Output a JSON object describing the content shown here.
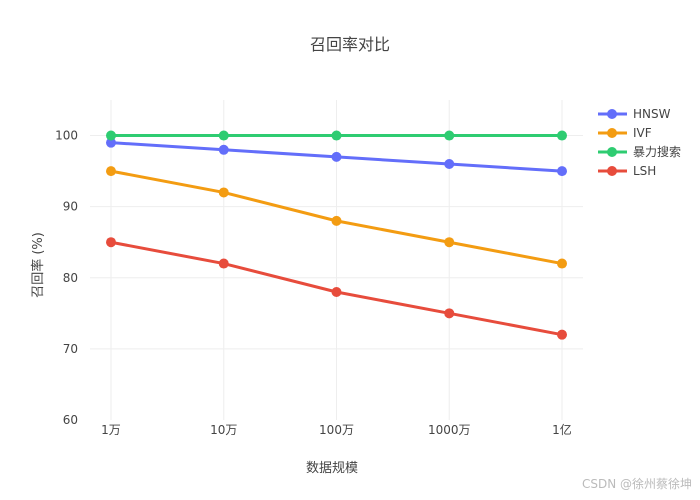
{
  "chart_data": {
    "type": "line",
    "title": "召回率对比",
    "xlabel": "数据规模",
    "ylabel": "召回率 (%)",
    "categories": [
      "1万",
      "10万",
      "100万",
      "1000万",
      "1亿"
    ],
    "yticks": [
      60,
      70,
      80,
      90,
      100
    ],
    "ylim": [
      60,
      105
    ],
    "grid": true,
    "legend": "top-right",
    "series": [
      {
        "name": "HNSW",
        "color": "#636EFA",
        "values": [
          99,
          98,
          97,
          96,
          95
        ]
      },
      {
        "name": "IVF",
        "color": "#F39C12",
        "values": [
          95,
          92,
          88,
          85,
          82
        ]
      },
      {
        "name": "暴力搜索",
        "color": "#2ECC71",
        "values": [
          100,
          100,
          100,
          100,
          100
        ]
      },
      {
        "name": "LSH",
        "color": "#E74C3C",
        "values": [
          85,
          82,
          78,
          75,
          72
        ]
      }
    ]
  },
  "watermark": "CSDN @徐州蔡徐坤"
}
